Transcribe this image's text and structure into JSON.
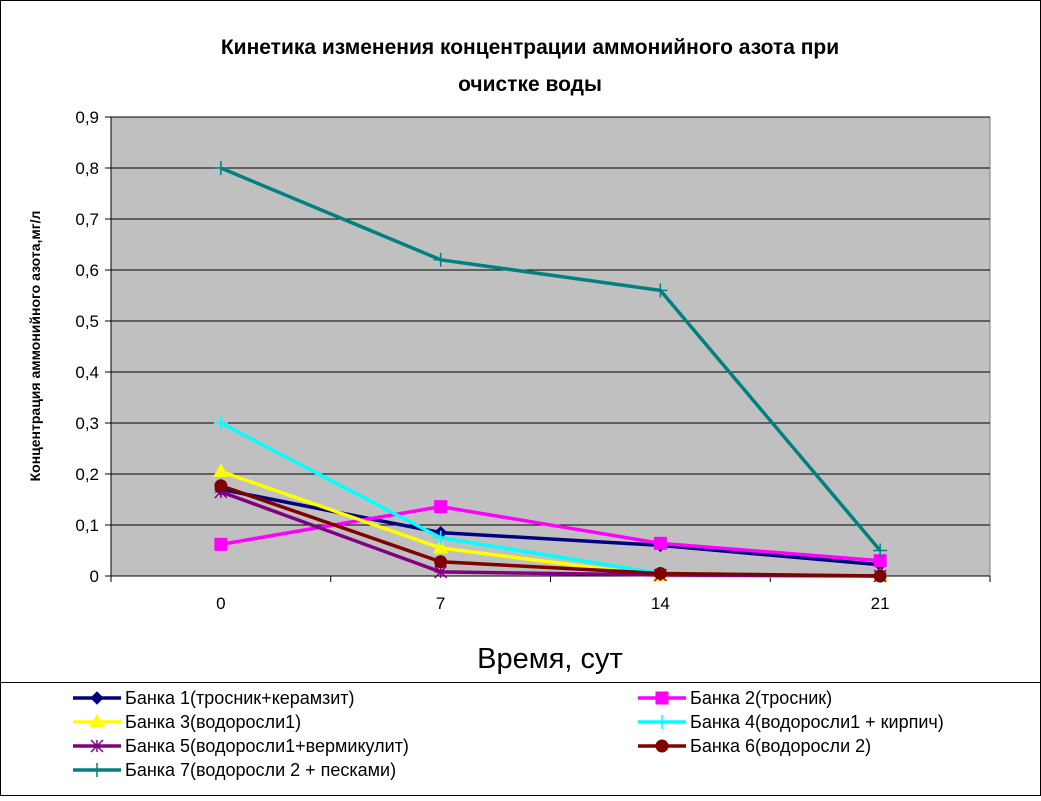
{
  "chart_data": {
    "type": "line",
    "title_lines": [
      "Кинетика изменения концентрации аммонийного азота при",
      "очистке воды"
    ],
    "xlabel": "Время, сут",
    "ylabel": "Концентрация аммонийного азота,мг/л",
    "categories": [
      "0",
      "7",
      "14",
      "21"
    ],
    "ylim": [
      0,
      0.9
    ],
    "yticks": [
      "0",
      "0,1",
      "0,2",
      "0,3",
      "0,4",
      "0,5",
      "0,6",
      "0,7",
      "0,8",
      "0,9"
    ],
    "grid": true,
    "legend_position": "bottom",
    "plot_background": "#c0c0c0",
    "series": [
      {
        "name": "Банка 1(тросник+керамзит)",
        "color": "#000080",
        "marker": "diamond",
        "values": [
          0.17,
          0.085,
          0.06,
          0.022
        ]
      },
      {
        "name": "Банка 2(тросник)",
        "color": "#ff00ff",
        "marker": "square",
        "values": [
          0.062,
          0.136,
          0.064,
          0.03
        ]
      },
      {
        "name": "Банка 3(водоросли1)",
        "color": "#ffff00",
        "marker": "triangle",
        "values": [
          0.205,
          0.055,
          0.0,
          0.0
        ]
      },
      {
        "name": "Банка 4(водоросли1 + кирпич)",
        "color": "#00ffff",
        "marker": "plus",
        "values": [
          0.3,
          0.075,
          0.005,
          0.0
        ]
      },
      {
        "name": "Банка 5(водоросли1+вермикулит)",
        "color": "#800080",
        "marker": "star",
        "values": [
          0.165,
          0.008,
          0.002,
          0.0
        ]
      },
      {
        "name": "Банка 6(водоросли 2)",
        "color": "#800000",
        "marker": "circle",
        "values": [
          0.177,
          0.028,
          0.005,
          0.0
        ]
      },
      {
        "name": "Банка 7(водоросли 2 + песками)",
        "color": "#008080",
        "marker": "plus",
        "values": [
          0.8,
          0.62,
          0.56,
          0.05
        ]
      }
    ]
  }
}
